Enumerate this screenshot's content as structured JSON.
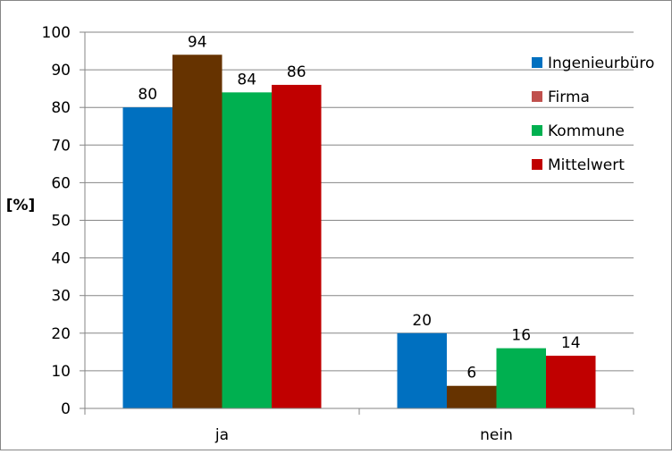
{
  "chart_data": {
    "type": "bar",
    "title": "",
    "xlabel": "",
    "ylabel": "[%]",
    "ylim": [
      0,
      100
    ],
    "yticks": [
      0,
      10,
      20,
      30,
      40,
      50,
      60,
      70,
      80,
      90,
      100
    ],
    "grid": true,
    "legend_position": "right",
    "categories": [
      "ja",
      "nein"
    ],
    "series": [
      {
        "name": "Ingenieurbüro",
        "color": "#0070C0",
        "values": [
          80,
          20
        ]
      },
      {
        "name": "Firma",
        "color": "#663300",
        "legend_color": "#C0504D",
        "values": [
          94,
          6
        ]
      },
      {
        "name": "Kommune",
        "color": "#00B050",
        "values": [
          84,
          16
        ]
      },
      {
        "name": "Mittelwert",
        "color": "#C00000",
        "values": [
          86,
          14
        ]
      }
    ]
  }
}
